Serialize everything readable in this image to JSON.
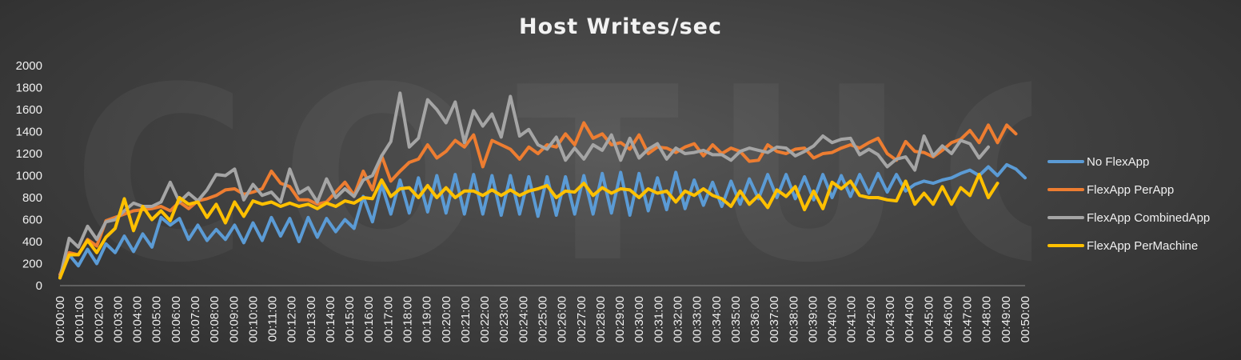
{
  "watermark": "COTUG",
  "chart_data": {
    "type": "line",
    "title": "Host Writes/sec",
    "xlabel": "",
    "ylabel": "",
    "ylim": [
      0,
      2000
    ],
    "yticks": [
      0,
      200,
      400,
      600,
      800,
      1000,
      1200,
      1400,
      1600,
      1800,
      2000
    ],
    "x_tick_labels": [
      "00:00:00",
      "00:01:00",
      "00:02:00",
      "00:03:00",
      "00:04:00",
      "00:05:00",
      "00:06:00",
      "00:07:00",
      "00:08:00",
      "00:09:00",
      "00:10:00",
      "00:11:00",
      "00:12:00",
      "00:13:00",
      "00:14:00",
      "00:15:00",
      "00:16:00",
      "00:17:00",
      "00:18:00",
      "00:19:00",
      "00:20:00",
      "00:21:00",
      "00:22:00",
      "00:23:00",
      "00:24:00",
      "00:25:00",
      "00:26:00",
      "00:27:00",
      "00:28:00",
      "00:29:00",
      "00:30:00",
      "00:31:00",
      "00:32:00",
      "00:33:00",
      "00:34:00",
      "00:35:00",
      "00:36:00",
      "00:37:00",
      "00:38:00",
      "00:39:00",
      "00:40:00",
      "00:41:00",
      "00:42:00",
      "00:43:00",
      "00:44:00",
      "00:45:00",
      "00:46:00",
      "00:47:00",
      "00:48:00",
      "00:49:00",
      "00:50:00"
    ],
    "grid": false,
    "legend_position": "right",
    "series": [
      {
        "name": "No FlexApp",
        "color": "#5b9bd5",
        "values": [
          80,
          280,
          180,
          330,
          200,
          380,
          300,
          450,
          310,
          470,
          350,
          620,
          550,
          610,
          420,
          550,
          410,
          510,
          420,
          550,
          390,
          570,
          410,
          620,
          450,
          610,
          400,
          620,
          440,
          610,
          490,
          600,
          520,
          810,
          580,
          920,
          650,
          960,
          660,
          980,
          670,
          1000,
          660,
          1010,
          650,
          1010,
          650,
          1000,
          640,
          1000,
          650,
          990,
          630,
          990,
          640,
          990,
          650,
          1000,
          650,
          1020,
          660,
          1030,
          640,
          1020,
          680,
          980,
          690,
          1030,
          700,
          960,
          730,
          940,
          720,
          950,
          740,
          970,
          790,
          1010,
          800,
          1010,
          790,
          990,
          780,
          1010,
          800,
          1000,
          810,
          1010,
          840,
          1020,
          850,
          1010,
          860,
          920,
          950,
          930,
          960,
          980,
          1020,
          1050,
          1000,
          1080,
          1000,
          1100,
          1060,
          980
        ]
      },
      {
        "name": "FlexApp PerApp",
        "color": "#ed7d31",
        "values": [
          100,
          300,
          280,
          420,
          360,
          590,
          620,
          650,
          680,
          690,
          700,
          720,
          680,
          760,
          700,
          770,
          790,
          820,
          870,
          880,
          830,
          850,
          880,
          1040,
          930,
          900,
          780,
          780,
          740,
          760,
          850,
          940,
          820,
          1040,
          870,
          1180,
          950,
          1040,
          1120,
          1150,
          1280,
          1160,
          1220,
          1320,
          1260,
          1370,
          1080,
          1320,
          1280,
          1240,
          1150,
          1260,
          1200,
          1280,
          1260,
          1380,
          1280,
          1480,
          1340,
          1380,
          1280,
          1300,
          1240,
          1370,
          1200,
          1260,
          1250,
          1210,
          1260,
          1290,
          1180,
          1280,
          1200,
          1250,
          1220,
          1130,
          1140,
          1280,
          1220,
          1200,
          1240,
          1250,
          1160,
          1200,
          1210,
          1250,
          1280,
          1250,
          1300,
          1340,
          1200,
          1140,
          1310,
          1220,
          1210,
          1170,
          1230,
          1300,
          1330,
          1410,
          1300,
          1460,
          1300,
          1460,
          1380
        ]
      },
      {
        "name": "FlexApp CombinedApp",
        "color": "#a5a5a5",
        "values": [
          70,
          430,
          350,
          540,
          420,
          580,
          600,
          680,
          750,
          720,
          720,
          760,
          940,
          760,
          840,
          770,
          870,
          1010,
          1000,
          1060,
          780,
          920,
          820,
          850,
          760,
          1060,
          840,
          890,
          760,
          970,
          800,
          880,
          810,
          960,
          1000,
          1180,
          1310,
          1750,
          1260,
          1340,
          1690,
          1600,
          1480,
          1670,
          1300,
          1590,
          1450,
          1560,
          1350,
          1720,
          1360,
          1420,
          1280,
          1240,
          1350,
          1140,
          1250,
          1150,
          1280,
          1230,
          1370,
          1140,
          1340,
          1160,
          1240,
          1290,
          1150,
          1250,
          1200,
          1210,
          1230,
          1190,
          1190,
          1140,
          1220,
          1250,
          1230,
          1210,
          1260,
          1250,
          1180,
          1220,
          1270,
          1360,
          1300,
          1330,
          1340,
          1190,
          1240,
          1190,
          1080,
          1150,
          1170,
          1050,
          1360,
          1180,
          1270,
          1200,
          1320,
          1290,
          1160,
          1260
        ]
      },
      {
        "name": "FlexApp PerMachine",
        "color": "#ffc000",
        "values": [
          70,
          280,
          280,
          410,
          300,
          440,
          520,
          790,
          500,
          720,
          600,
          680,
          590,
          800,
          740,
          760,
          620,
          740,
          570,
          760,
          630,
          770,
          740,
          760,
          720,
          750,
          720,
          740,
          700,
          750,
          720,
          770,
          750,
          800,
          790,
          960,
          810,
          880,
          890,
          800,
          910,
          800,
          890,
          800,
          860,
          860,
          820,
          870,
          820,
          870,
          820,
          860,
          880,
          910,
          800,
          860,
          850,
          930,
          820,
          890,
          840,
          880,
          870,
          800,
          880,
          840,
          860,
          760,
          860,
          820,
          880,
          820,
          790,
          720,
          860,
          740,
          820,
          710,
          870,
          810,
          900,
          690,
          860,
          700,
          940,
          880,
          950,
          820,
          800,
          800,
          780,
          770,
          950,
          740,
          840,
          740,
          900,
          740,
          890,
          820,
          1010,
          800,
          930
        ]
      }
    ]
  }
}
